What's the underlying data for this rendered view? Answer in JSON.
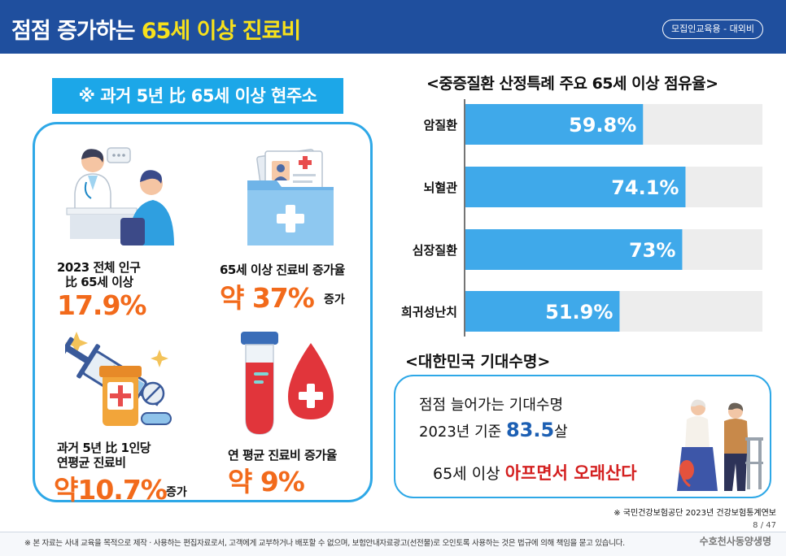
{
  "header": {
    "title_prefix": "점점 증가하는 ",
    "title_highlight": "65세 이상 진료비",
    "badge": "모집인교육용 - 대외비"
  },
  "left": {
    "subtitle": "※ 과거 5년 比 65세 이상 현주소",
    "stats": [
      {
        "label_line1": "2023 전체 인구",
        "label_line2": "比 65세 이상",
        "value": "17.9%",
        "suffix": ""
      },
      {
        "label_line1": "65세 이상 진료비 증가율",
        "label_line2": "",
        "value": "약 37%",
        "suffix": "증가"
      },
      {
        "label_line1": "과거 5년 比 1인당",
        "label_line2": "연평균 진료비",
        "value": "약10.7%",
        "suffix": "증가"
      },
      {
        "label_line1": "연 평균 진료비 증가율",
        "label_line2": "",
        "value": "약 9%",
        "suffix": ""
      }
    ],
    "icons": [
      "doctor-consultation-icon",
      "medical-folder-icon",
      "syringe-pills-icon",
      "blood-test-icon"
    ]
  },
  "chart_data": {
    "type": "bar",
    "orientation": "horizontal",
    "title": "<중증질환 산정특례 주요 65세 이상 점유율>",
    "categories": [
      "암질환",
      "뇌혈관",
      "심장질환",
      "희귀성난치"
    ],
    "values": [
      59.8,
      74.1,
      73,
      51.9
    ],
    "value_labels": [
      "59.8%",
      "74.1%",
      "73%",
      "51.9%"
    ],
    "xlim": [
      0,
      100
    ],
    "colors": {
      "bar": "#3fa9ea",
      "track": "#ededed"
    }
  },
  "life": {
    "title": "<대한민국 기대수명>",
    "line1": "점점 늘어가는 기대수명",
    "line2_prefix": "2023년 기준 ",
    "line2_value": "83.5",
    "line2_suffix": "살",
    "line3_prefix": "65세 이상 ",
    "line3_red": "아프면서 오래산다"
  },
  "source_note": "※ 국민건강보험공단 2023년 건강보험통계연보",
  "page": "8 / 47",
  "footer": {
    "disclaimer": "※ 본 자료는 사내 교육을 목적으로 제작 · 사용하는 편집자료로서, 고객에게 교부하거나 배포할 수 없으며, 보험안내자료광고(선전물)로 오인토록 사용하는 것은 법규에 의해 책임을 묻고 있습니다.",
    "brand": "수호천사동양생명"
  }
}
